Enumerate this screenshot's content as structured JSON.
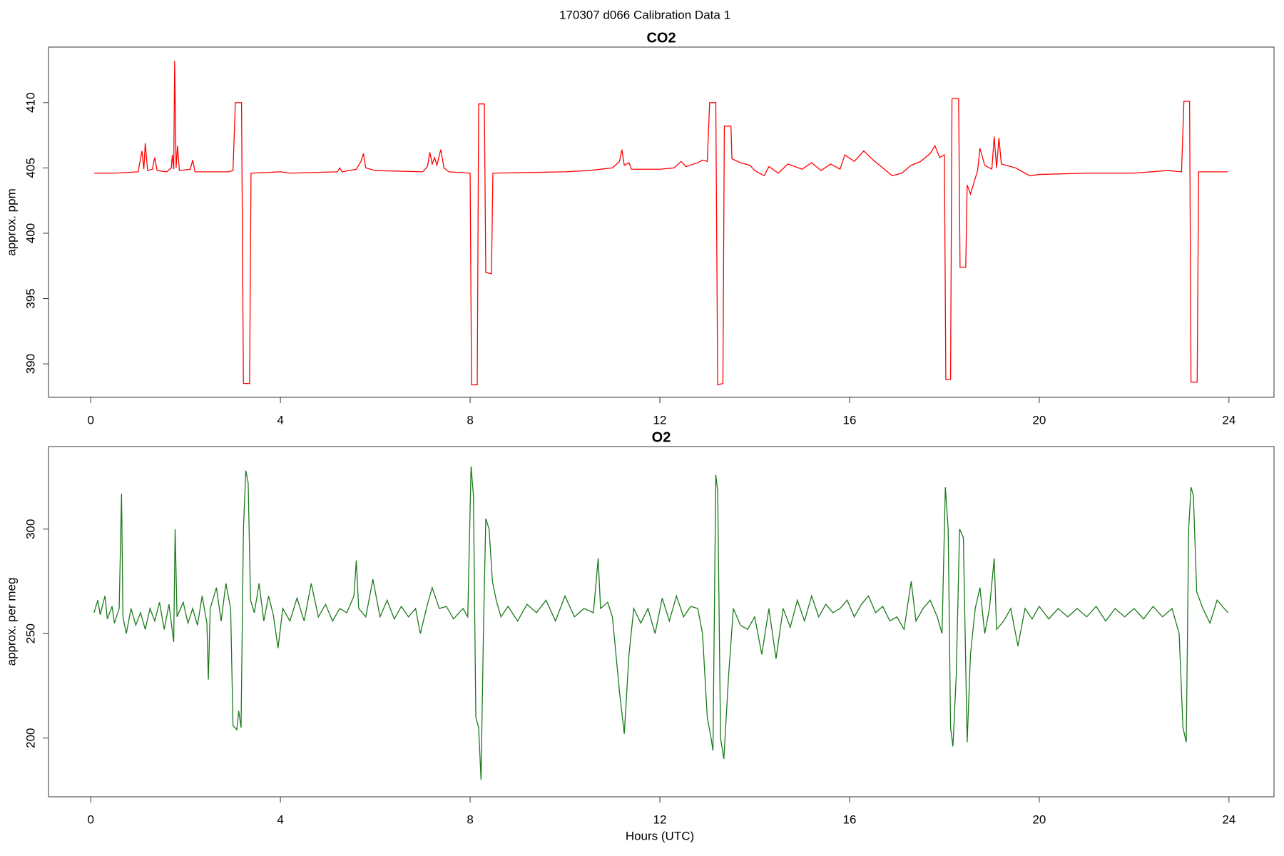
{
  "title": "170307   d066   Calibration Data 1",
  "chart_data": [
    {
      "type": "line",
      "title": "CO2",
      "y_label": "approx. ppm",
      "color": "#ff0000",
      "xlim": [
        -0.89,
        24.95
      ],
      "xticks": [
        0,
        4,
        8,
        12,
        16,
        20,
        24
      ],
      "ylim": [
        387.44,
        414.25
      ],
      "yticks": [
        390,
        395,
        400,
        405,
        410
      ],
      "x": [
        0.07,
        0.5,
        1.0,
        1.08,
        1.12,
        1.15,
        1.2,
        1.3,
        1.35,
        1.4,
        1.6,
        1.7,
        1.72,
        1.75,
        1.77,
        1.8,
        1.83,
        1.87,
        2.1,
        2.15,
        2.2,
        2.9,
        3.0,
        3.05,
        3.18,
        3.22,
        3.35,
        3.38,
        4.0,
        4.2,
        5.2,
        5.25,
        5.3,
        5.6,
        5.7,
        5.75,
        5.8,
        6.0,
        7.0,
        7.1,
        7.15,
        7.2,
        7.25,
        7.3,
        7.38,
        7.45,
        7.55,
        8.0,
        8.03,
        8.15,
        8.18,
        8.3,
        8.33,
        8.45,
        8.48,
        10.0,
        10.5,
        11.0,
        11.15,
        11.2,
        11.25,
        11.35,
        11.4,
        12.0,
        12.3,
        12.45,
        12.55,
        12.8,
        12.9,
        13.0,
        13.05,
        13.18,
        13.22,
        13.33,
        13.36,
        13.5,
        13.52,
        13.7,
        13.9,
        14.0,
        14.2,
        14.3,
        14.5,
        14.7,
        15.0,
        15.2,
        15.4,
        15.6,
        15.8,
        15.9,
        16.1,
        16.3,
        16.5,
        16.7,
        16.9,
        17.1,
        17.3,
        17.5,
        17.7,
        17.8,
        17.9,
        18.0,
        18.03,
        18.13,
        18.16,
        18.3,
        18.33,
        18.45,
        18.48,
        18.55,
        18.7,
        18.75,
        18.85,
        19.0,
        19.05,
        19.1,
        19.15,
        19.2,
        19.5,
        19.8,
        20.0,
        21.0,
        22.0,
        22.7,
        23.0,
        23.05,
        23.17,
        23.2,
        23.33,
        23.36,
        23.98
      ],
      "values": [
        404.6,
        404.6,
        404.7,
        406.3,
        404.9,
        406.9,
        404.8,
        404.9,
        405.8,
        404.8,
        404.7,
        405.0,
        406.0,
        404.9,
        413.2,
        405.0,
        406.7,
        404.8,
        404.9,
        405.6,
        404.7,
        404.7,
        404.8,
        410.0,
        410.0,
        388.5,
        388.5,
        404.6,
        404.7,
        404.6,
        404.7,
        405.0,
        404.7,
        404.9,
        405.5,
        406.1,
        405.0,
        404.8,
        404.7,
        405.1,
        406.2,
        405.3,
        405.8,
        405.2,
        406.4,
        405.0,
        404.7,
        404.6,
        388.4,
        388.4,
        409.9,
        409.9,
        397.0,
        396.9,
        404.6,
        404.7,
        404.8,
        405.0,
        405.5,
        406.4,
        405.2,
        405.4,
        404.9,
        404.9,
        405.0,
        405.5,
        405.1,
        405.4,
        405.6,
        405.5,
        410.0,
        410.0,
        388.4,
        388.5,
        408.2,
        408.2,
        405.7,
        405.4,
        405.2,
        404.8,
        404.4,
        405.1,
        404.6,
        405.3,
        404.9,
        405.4,
        404.8,
        405.3,
        404.9,
        406.0,
        405.5,
        406.3,
        405.6,
        405.0,
        404.4,
        404.6,
        405.2,
        405.5,
        406.1,
        406.7,
        405.8,
        406.0,
        388.8,
        388.8,
        410.3,
        410.3,
        397.4,
        397.4,
        403.7,
        403.0,
        404.8,
        406.5,
        405.2,
        404.9,
        407.4,
        405.0,
        407.3,
        405.3,
        405.0,
        404.4,
        404.5,
        404.6,
        404.6,
        404.8,
        404.7,
        410.1,
        410.1,
        388.6,
        388.6,
        404.7,
        404.7
      ]
    },
    {
      "type": "line",
      "title": "O2",
      "y_label": "approx. per meg",
      "x_label": "Hours (UTC)",
      "color": "#1a7a1a",
      "xlim": [
        -0.89,
        24.95
      ],
      "xticks": [
        0,
        4,
        8,
        12,
        16,
        20,
        24
      ],
      "ylim": [
        171.9,
        339.5
      ],
      "yticks": [
        200,
        250,
        300
      ],
      "x": [
        0.07,
        0.15,
        0.2,
        0.3,
        0.35,
        0.45,
        0.5,
        0.6,
        0.65,
        0.68,
        0.75,
        0.85,
        0.95,
        1.05,
        1.15,
        1.25,
        1.35,
        1.45,
        1.55,
        1.65,
        1.75,
        1.78,
        1.82,
        1.95,
        2.05,
        2.15,
        2.25,
        2.35,
        2.45,
        2.48,
        2.52,
        2.65,
        2.75,
        2.85,
        2.95,
        3.0,
        3.08,
        3.12,
        3.17,
        3.22,
        3.27,
        3.32,
        3.37,
        3.45,
        3.55,
        3.65,
        3.75,
        3.85,
        3.95,
        4.05,
        4.2,
        4.35,
        4.5,
        4.65,
        4.8,
        4.95,
        5.1,
        5.25,
        5.4,
        5.55,
        5.6,
        5.65,
        5.8,
        5.95,
        6.1,
        6.25,
        6.4,
        6.55,
        6.7,
        6.85,
        6.95,
        7.1,
        7.2,
        7.35,
        7.5,
        7.65,
        7.85,
        7.95,
        8.02,
        8.07,
        8.12,
        8.18,
        8.23,
        8.28,
        8.33,
        8.4,
        8.47,
        8.55,
        8.65,
        8.8,
        9.0,
        9.2,
        9.4,
        9.6,
        9.8,
        10.0,
        10.2,
        10.4,
        10.6,
        10.7,
        10.75,
        10.9,
        11.0,
        11.15,
        11.25,
        11.35,
        11.45,
        11.6,
        11.75,
        11.9,
        12.05,
        12.2,
        12.35,
        12.5,
        12.65,
        12.8,
        12.9,
        13.0,
        13.08,
        13.12,
        13.18,
        13.22,
        13.28,
        13.35,
        13.45,
        13.55,
        13.7,
        13.85,
        14.0,
        14.15,
        14.3,
        14.45,
        14.6,
        14.75,
        14.9,
        15.05,
        15.2,
        15.35,
        15.5,
        15.65,
        15.8,
        15.95,
        16.1,
        16.25,
        16.4,
        16.55,
        16.7,
        16.85,
        17.0,
        17.15,
        17.3,
        17.4,
        17.55,
        17.7,
        17.85,
        17.95,
        18.02,
        18.08,
        18.13,
        18.18,
        18.25,
        18.32,
        18.4,
        18.48,
        18.55,
        18.65,
        18.75,
        18.85,
        18.95,
        19.05,
        19.1,
        19.25,
        19.4,
        19.55,
        19.7,
        19.85,
        20.0,
        20.2,
        20.4,
        20.6,
        20.8,
        21.0,
        21.2,
        21.4,
        21.6,
        21.8,
        22.0,
        22.2,
        22.4,
        22.6,
        22.8,
        22.95,
        23.03,
        23.1,
        23.15,
        23.2,
        23.25,
        23.32,
        23.45,
        23.6,
        23.75,
        23.9,
        23.98
      ],
      "values": [
        260,
        266,
        259,
        268,
        257,
        263,
        255,
        262,
        317,
        258,
        250,
        262,
        254,
        260,
        252,
        262,
        256,
        265,
        252,
        264,
        246,
        300,
        258,
        265,
        255,
        262,
        254,
        268,
        255,
        228,
        262,
        272,
        256,
        274,
        262,
        206,
        204,
        213,
        205,
        300,
        328,
        322,
        266,
        260,
        274,
        256,
        268,
        259,
        243,
        262,
        256,
        267,
        256,
        274,
        258,
        264,
        256,
        262,
        260,
        268,
        285,
        262,
        258,
        276,
        258,
        266,
        257,
        263,
        258,
        262,
        250,
        264,
        272,
        262,
        263,
        257,
        262,
        258,
        330,
        316,
        210,
        205,
        180,
        250,
        305,
        300,
        275,
        266,
        258,
        263,
        256,
        264,
        260,
        266,
        256,
        268,
        258,
        262,
        260,
        286,
        262,
        265,
        258,
        222,
        202,
        240,
        262,
        255,
        262,
        250,
        267,
        256,
        268,
        258,
        263,
        262,
        250,
        210,
        200,
        194,
        326,
        318,
        200,
        190,
        230,
        262,
        254,
        252,
        258,
        240,
        262,
        238,
        262,
        253,
        266,
        256,
        268,
        258,
        264,
        260,
        262,
        266,
        258,
        264,
        268,
        260,
        263,
        256,
        258,
        252,
        275,
        256,
        262,
        266,
        258,
        250,
        320,
        300,
        205,
        196,
        230,
        300,
        296,
        198,
        240,
        262,
        272,
        250,
        262,
        286,
        252,
        256,
        262,
        244,
        262,
        257,
        263,
        257,
        262,
        258,
        262,
        258,
        263,
        256,
        262,
        258,
        262,
        257,
        263,
        258,
        262,
        250,
        205,
        198,
        300,
        320,
        316,
        270,
        262,
        255,
        266,
        262,
        260
      ]
    }
  ]
}
